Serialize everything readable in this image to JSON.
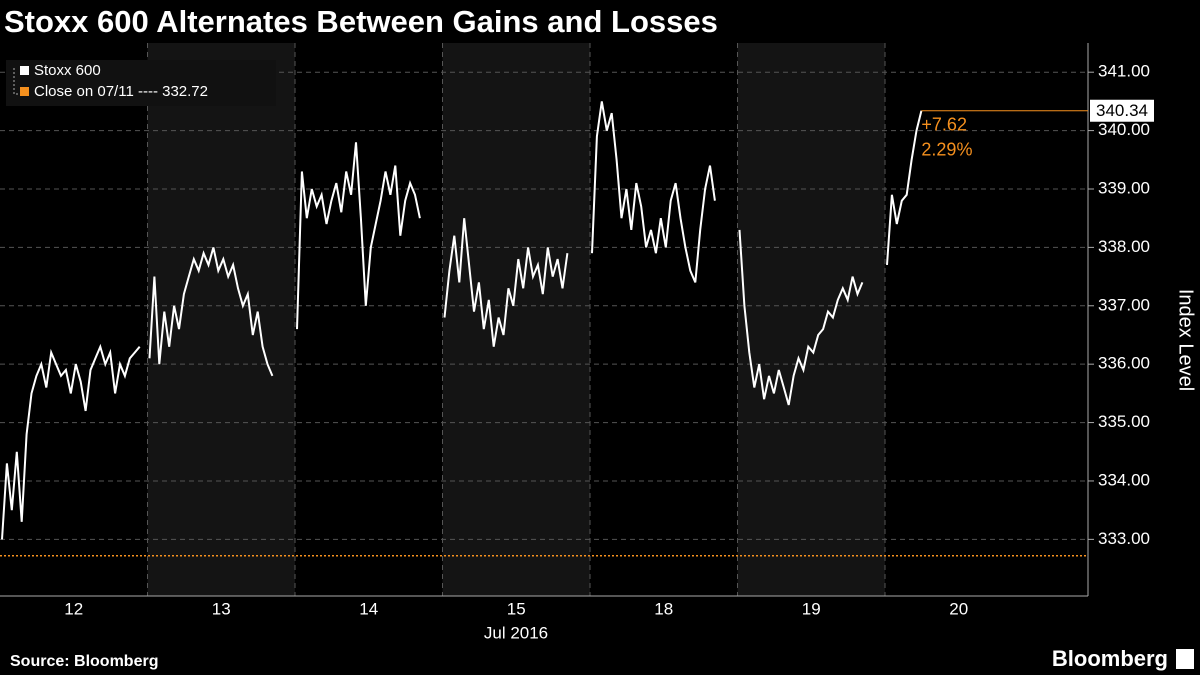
{
  "chart_data": {
    "type": "line",
    "title": "Stoxx 600 Alternates Between Gains and Losses",
    "categories": [
      "12",
      "13",
      "14",
      "15",
      "18",
      "19",
      "20"
    ],
    "x_label": "Jul 2016",
    "y_label": "Index Level",
    "ylim": [
      332.03,
      341.5
    ],
    "yticks": [
      {
        "value": 333,
        "label": "333.00"
      },
      {
        "value": 334,
        "label": "334.00"
      },
      {
        "value": 335,
        "label": "335.00"
      },
      {
        "value": 336,
        "label": "336.00"
      },
      {
        "value": 337,
        "label": "337.00"
      },
      {
        "value": 338,
        "label": "338.00"
      },
      {
        "value": 339,
        "label": "339.00"
      },
      {
        "value": 340,
        "label": "340.00"
      },
      {
        "value": 341,
        "label": "341.00"
      }
    ],
    "grid": true,
    "series": [
      {
        "name": "Stoxx 600",
        "color": "#ffffff",
        "values": [
          [
            333.0,
            334.3,
            333.5,
            334.5,
            333.3,
            334.8,
            335.5,
            335.8,
            336.0,
            335.6,
            336.2,
            336.0,
            335.8,
            335.9,
            335.5,
            336.0,
            335.7,
            335.2,
            335.9,
            336.1,
            336.3,
            336.0,
            336.2,
            335.5,
            336.0,
            335.8,
            336.1,
            336.2,
            336.3
          ],
          [
            336.1,
            337.5,
            336.0,
            336.9,
            336.3,
            337.0,
            336.6,
            337.2,
            337.5,
            337.8,
            337.6,
            337.9,
            337.7,
            338.0,
            337.6,
            337.8,
            337.5,
            337.7,
            337.3,
            337.0,
            337.2,
            336.5,
            336.9,
            336.3,
            336.0,
            335.8
          ],
          [
            336.6,
            339.3,
            338.5,
            339.0,
            338.7,
            338.9,
            338.4,
            338.8,
            339.1,
            338.6,
            339.3,
            338.9,
            339.8,
            338.5,
            337.0,
            338.0,
            338.4,
            338.8,
            339.3,
            338.9,
            339.4,
            338.2,
            338.8,
            339.1,
            338.9,
            338.5
          ],
          [
            336.8,
            337.6,
            338.2,
            337.4,
            338.5,
            337.7,
            336.9,
            337.4,
            336.6,
            337.1,
            336.3,
            336.8,
            336.5,
            337.3,
            337.0,
            337.8,
            337.3,
            338.0,
            337.5,
            337.7,
            337.2,
            338.0,
            337.5,
            337.8,
            337.3,
            337.9
          ],
          [
            337.9,
            339.9,
            340.5,
            340.0,
            340.3,
            339.5,
            338.5,
            339.0,
            338.3,
            339.1,
            338.7,
            338.0,
            338.3,
            337.9,
            338.5,
            338.0,
            338.8,
            339.1,
            338.5,
            338.0,
            337.6,
            337.4,
            338.3,
            339.0,
            339.4,
            338.8
          ],
          [
            338.3,
            337.0,
            336.2,
            335.6,
            336.0,
            335.4,
            335.8,
            335.5,
            335.9,
            335.6,
            335.3,
            335.8,
            336.1,
            335.9,
            336.3,
            336.2,
            336.5,
            336.6,
            336.9,
            336.8,
            337.1,
            337.3,
            337.1,
            337.5,
            337.2,
            337.4
          ],
          [
            337.7,
            338.9,
            338.4,
            338.8,
            338.9,
            339.5,
            340.0,
            340.34
          ]
        ]
      },
      {
        "name": "Close on 07/11 ---- 332.72",
        "color": "#f5901e",
        "value": 332.72
      }
    ],
    "change": {
      "value": 7.62,
      "label": "+7.62"
    },
    "change_pct": {
      "value": 2.29,
      "label": "2.29%"
    },
    "source": "Source: Bloomberg",
    "brand": "Bloomberg"
  }
}
